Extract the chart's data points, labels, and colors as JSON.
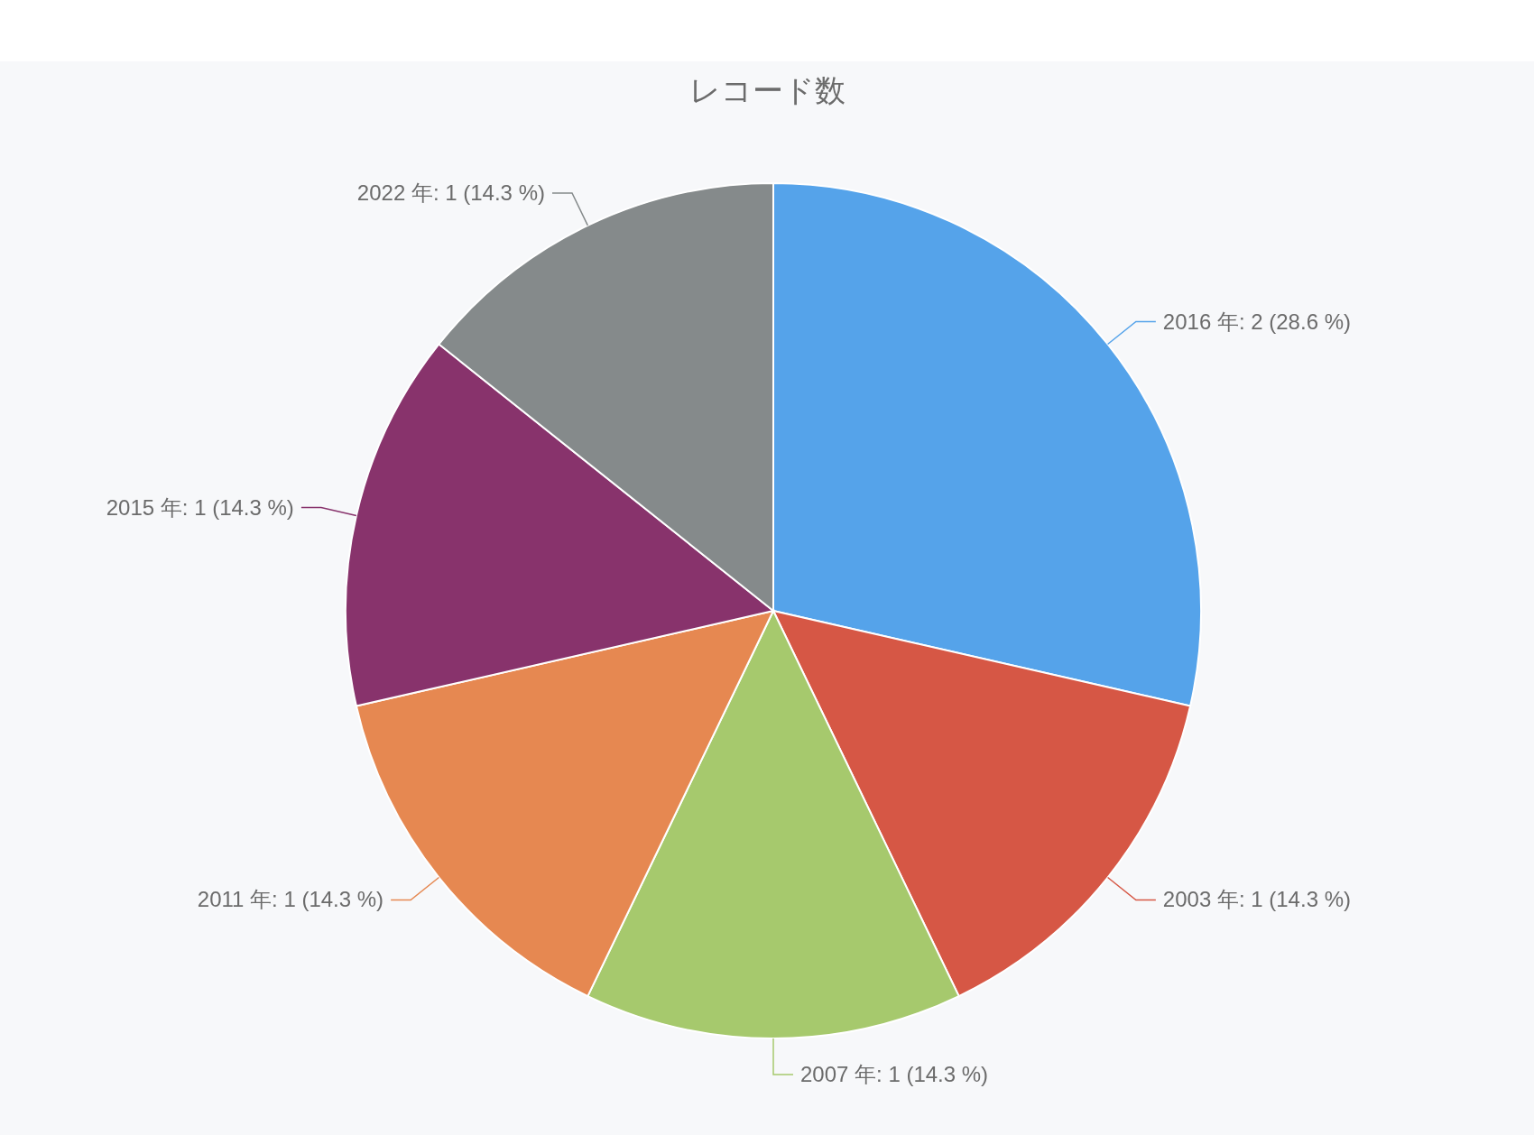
{
  "chart_data": {
    "type": "pie",
    "title": "レコード数",
    "categories": [
      "2016 年",
      "2003 年",
      "2007 年",
      "2011 年",
      "2015 年",
      "2022 年"
    ],
    "values": [
      2,
      1,
      1,
      1,
      1,
      1
    ],
    "value_labels": [
      "2 (28.6 %)",
      "1 (14.3 %)",
      "1 (14.3 %)",
      "1 (14.3 %)",
      "1 (14.3 %)",
      "1 (14.3 %)"
    ],
    "colors": [
      "#55a3ea",
      "#d65745",
      "#a6c96d",
      "#e68851",
      "#88336c",
      "#858a8b"
    ]
  }
}
